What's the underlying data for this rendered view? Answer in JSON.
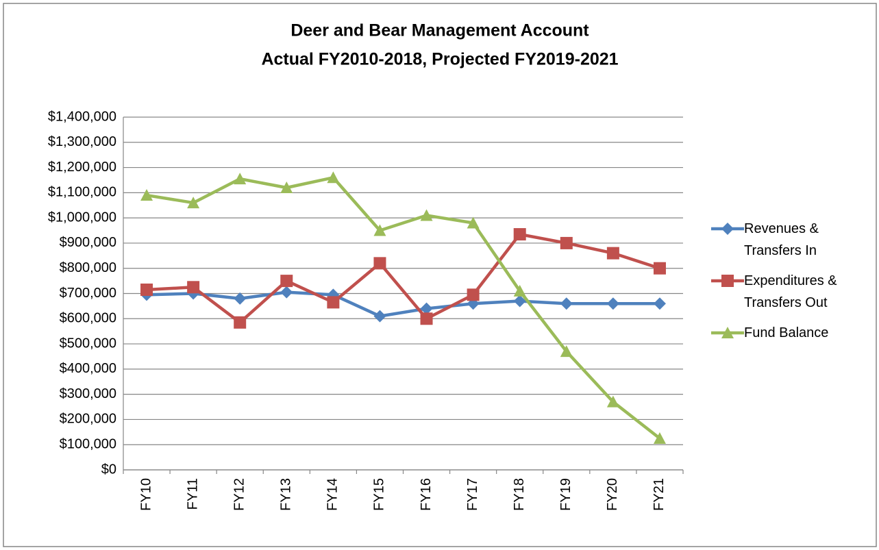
{
  "chart_data": {
    "type": "line",
    "title": "Deer and Bear Management Account",
    "subtitle": "Actual FY2010-2018, Projected FY2019-2021",
    "categories": [
      "FY10",
      "FY11",
      "FY12",
      "FY13",
      "FY14",
      "FY15",
      "FY16",
      "FY17",
      "FY18",
      "FY19",
      "FY20",
      "FY21"
    ],
    "series": [
      {
        "name": "Revenues & Transfers In",
        "color": "#4f81bd",
        "marker": "diamond",
        "values": [
          695000,
          700000,
          680000,
          705000,
          695000,
          610000,
          640000,
          660000,
          670000,
          660000,
          660000,
          660000
        ]
      },
      {
        "name": "Expenditures & Transfers Out",
        "color": "#c0504d",
        "marker": "square",
        "values": [
          715000,
          725000,
          585000,
          750000,
          665000,
          820000,
          600000,
          695000,
          935000,
          900000,
          860000,
          800000
        ]
      },
      {
        "name": "Fund Balance",
        "color": "#9bbb59",
        "marker": "triangle",
        "values": [
          1090000,
          1060000,
          1155000,
          1120000,
          1160000,
          950000,
          1010000,
          980000,
          710000,
          470000,
          270000,
          125000
        ]
      }
    ],
    "ylim": [
      0,
      1400000
    ],
    "yticks": [
      {
        "value": 0,
        "label": "$0"
      },
      {
        "value": 100000,
        "label": "$100,000"
      },
      {
        "value": 200000,
        "label": "$200,000"
      },
      {
        "value": 300000,
        "label": "$300,000"
      },
      {
        "value": 400000,
        "label": "$400,000"
      },
      {
        "value": 500000,
        "label": "$500,000"
      },
      {
        "value": 600000,
        "label": "$600,000"
      },
      {
        "value": 700000,
        "label": "$700,000"
      },
      {
        "value": 800000,
        "label": "$800,000"
      },
      {
        "value": 900000,
        "label": "$900,000"
      },
      {
        "value": 1000000,
        "label": "$1,000,000"
      },
      {
        "value": 1100000,
        "label": "$1,100,000"
      },
      {
        "value": 1200000,
        "label": "$1,200,000"
      },
      {
        "value": 1300000,
        "label": "$1,300,000"
      },
      {
        "value": 1400000,
        "label": "$1,400,000"
      }
    ],
    "grid": true,
    "legend": "right"
  }
}
